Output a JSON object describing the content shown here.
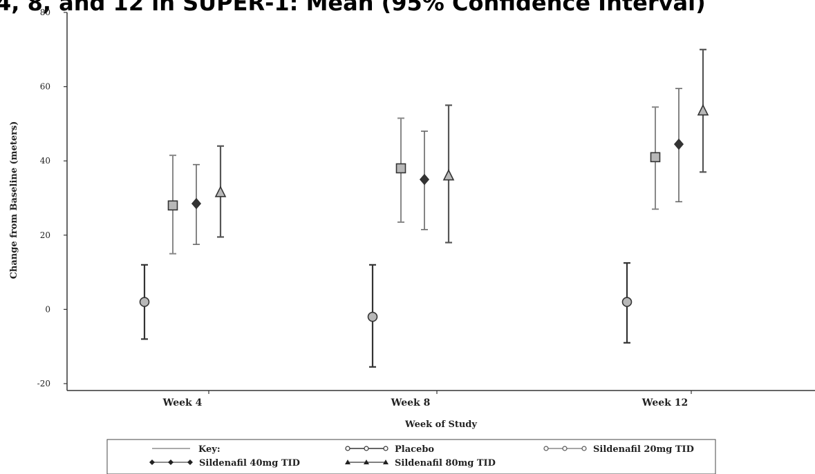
{
  "title": "4, 8, and 12 in SUPER-1: Mean (95% Confidence Interval)",
  "chart_data": {
    "type": "scatter",
    "title": "4, 8, and 12 in SUPER-1: Mean (95% Confidence Interval)",
    "xlabel": "Week of Study",
    "ylabel": "Change from Baseline (meters)",
    "ylim": [
      -20,
      80
    ],
    "yticks": [
      -20,
      0,
      20,
      40,
      60,
      80
    ],
    "grid": false,
    "legend_placement": "bottom",
    "categories": [
      "Week 4",
      "Week 8",
      "Week 12"
    ],
    "series": [
      {
        "name": "Placebo",
        "marker": "circle",
        "values": [
          2,
          -2,
          2
        ],
        "lower": [
          -8,
          -15.5,
          -9
        ],
        "upper": [
          12,
          12,
          12.5
        ]
      },
      {
        "name": "Sildenafil 20mg TID",
        "marker": "square",
        "values": [
          28,
          38,
          41
        ],
        "lower": [
          15,
          23.5,
          27
        ],
        "upper": [
          41.5,
          51.5,
          54.5
        ]
      },
      {
        "name": "Sildenafil 40mg TID",
        "marker": "diamond",
        "values": [
          28.5,
          35,
          44.5
        ],
        "lower": [
          17.5,
          21.5,
          29
        ],
        "upper": [
          39,
          48,
          59.5
        ]
      },
      {
        "name": "Sildenafil 80mg TID",
        "marker": "triangle",
        "values": [
          31.5,
          36,
          53.5
        ],
        "lower": [
          19.5,
          18,
          37
        ],
        "upper": [
          44,
          55,
          70
        ]
      }
    ],
    "legend": {
      "key_label": "Key:",
      "entries": [
        "Placebo",
        "Sildenafil 20mg TID",
        "Sildenafil 40mg TID",
        "Sildenafil 80mg TID"
      ]
    }
  }
}
